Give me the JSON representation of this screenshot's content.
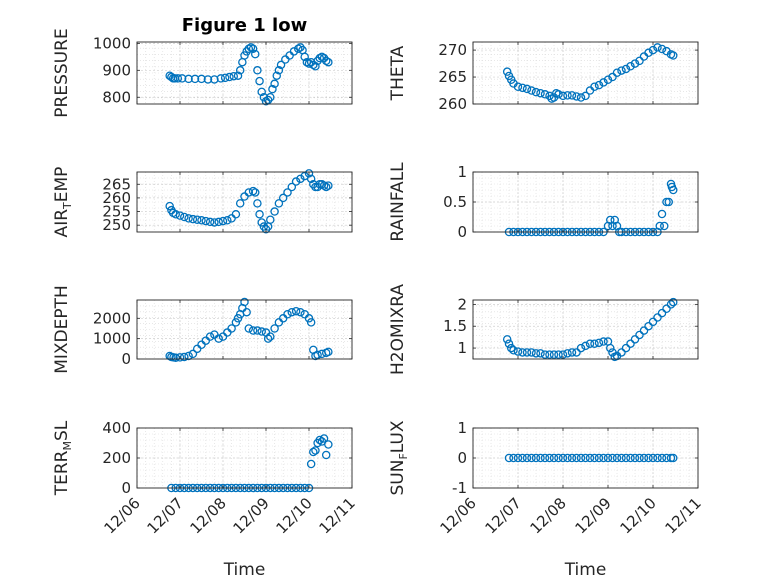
{
  "chart_data": [
    {
      "type": "scatter",
      "title": "Figure 1 low",
      "ylabel": "PRESSURE",
      "xlabel": "",
      "ylim": [
        775,
        1005
      ],
      "yticks": [
        1000,
        900,
        800
      ],
      "xlim": [
        "12/06",
        "12/11"
      ],
      "xticks": [
        "12/06",
        "12/07",
        "12/08",
        "12/09",
        "12/10",
        "12/11"
      ],
      "grid": true,
      "marker_color": "#0072BD",
      "x": [
        0.76,
        0.8,
        0.84,
        0.88,
        0.95,
        1.05,
        1.2,
        1.35,
        1.5,
        1.65,
        1.8,
        1.95,
        2.05,
        2.15,
        2.25,
        2.35,
        2.4,
        2.45,
        2.5,
        2.55,
        2.6,
        2.65,
        2.7,
        2.75,
        2.8,
        2.85,
        2.9,
        2.95,
        3.0,
        3.05,
        3.1,
        3.15,
        3.2,
        3.25,
        3.3,
        3.35,
        3.45,
        3.55,
        3.65,
        3.75,
        3.8,
        3.85,
        3.9,
        3.95,
        4.0,
        4.05,
        4.1,
        4.15,
        4.2,
        4.25,
        4.3,
        4.35,
        4.4,
        4.45
      ],
      "values": [
        880,
        875,
        870,
        870,
        870,
        870,
        868,
        868,
        868,
        866,
        866,
        870,
        872,
        875,
        878,
        880,
        900,
        930,
        955,
        970,
        980,
        985,
        980,
        960,
        900,
        860,
        820,
        800,
        785,
        790,
        800,
        830,
        850,
        880,
        900,
        920,
        940,
        955,
        970,
        980,
        985,
        975,
        950,
        930,
        925,
        930,
        920,
        915,
        935,
        945,
        950,
        945,
        935,
        930
      ]
    },
    {
      "type": "scatter",
      "title": "",
      "ylabel": "THETA",
      "xlabel": "",
      "ylim": [
        260,
        271.5
      ],
      "yticks": [
        270,
        265,
        260
      ],
      "xlim": [
        "12/06",
        "12/11"
      ],
      "xticks": [
        "12/06",
        "12/07",
        "12/08",
        "12/09",
        "12/10",
        "12/11"
      ],
      "grid": true,
      "marker_color": "#0072BD",
      "x": [
        0.76,
        0.8,
        0.85,
        0.9,
        1.0,
        1.1,
        1.2,
        1.3,
        1.4,
        1.5,
        1.6,
        1.7,
        1.75,
        1.8,
        1.85,
        1.9,
        2.0,
        2.1,
        2.2,
        2.3,
        2.4,
        2.5,
        2.6,
        2.7,
        2.8,
        2.9,
        3.0,
        3.1,
        3.2,
        3.3,
        3.4,
        3.5,
        3.6,
        3.7,
        3.8,
        3.9,
        4.0,
        4.1,
        4.2,
        4.3,
        4.4,
        4.45
      ],
      "values": [
        266,
        265.2,
        264.5,
        263.8,
        263.2,
        263,
        262.8,
        262.5,
        262.2,
        262,
        261.8,
        261.5,
        261,
        261.2,
        262,
        261.8,
        261.5,
        261.6,
        261.6,
        261.4,
        261.2,
        261.5,
        262.5,
        263.2,
        263.5,
        264,
        264.5,
        265,
        265.8,
        266.2,
        266.5,
        267,
        267.5,
        268,
        268.8,
        269.5,
        270,
        270.5,
        270.2,
        269.8,
        269.2,
        269
      ]
    },
    {
      "type": "scatter",
      "title": "",
      "ylabel": "AIR_TEMP",
      "xlabel": "",
      "ylim": [
        247.5,
        269.5
      ],
      "yticks": [
        265,
        260,
        255,
        250
      ],
      "xlim": [
        "12/06",
        "12/11"
      ],
      "xticks": [
        "12/06",
        "12/07",
        "12/08",
        "12/09",
        "12/10",
        "12/11"
      ],
      "grid": true,
      "marker_color": "#0072BD",
      "x": [
        0.76,
        0.8,
        0.84,
        0.9,
        1.0,
        1.1,
        1.2,
        1.3,
        1.4,
        1.5,
        1.6,
        1.7,
        1.8,
        1.9,
        2.0,
        2.1,
        2.2,
        2.3,
        2.4,
        2.5,
        2.6,
        2.7,
        2.75,
        2.8,
        2.85,
        2.9,
        2.95,
        3.0,
        3.05,
        3.1,
        3.2,
        3.3,
        3.4,
        3.5,
        3.6,
        3.7,
        3.8,
        3.9,
        4.0,
        4.05,
        4.1,
        4.15,
        4.2,
        4.25,
        4.3,
        4.35,
        4.4,
        4.45
      ],
      "values": [
        257,
        255.5,
        254.5,
        254,
        253.5,
        253,
        252.5,
        252.2,
        252,
        251.8,
        251.5,
        251.2,
        251,
        251.2,
        251.5,
        251.8,
        252.5,
        254,
        258,
        260.5,
        262,
        262.5,
        262,
        258,
        254,
        251,
        249.5,
        248.5,
        249.5,
        252,
        255,
        258,
        260,
        262,
        264,
        266,
        267,
        268,
        269,
        267,
        265,
        264,
        264,
        265,
        265,
        264.5,
        264,
        264.5
      ]
    },
    {
      "type": "scatter",
      "title": "",
      "ylabel": "RAINFALL",
      "xlabel": "",
      "ylim": [
        0,
        1
      ],
      "yticks": [
        1,
        0.5,
        0
      ],
      "xlim": [
        "12/06",
        "12/11"
      ],
      "xticks": [
        "12/06",
        "12/07",
        "12/08",
        "12/09",
        "12/10",
        "12/11"
      ],
      "grid": true,
      "marker_color": "#0072BD",
      "x": [
        0.8,
        0.9,
        1.0,
        1.1,
        1.2,
        1.3,
        1.4,
        1.5,
        1.6,
        1.7,
        1.8,
        1.9,
        2.0,
        2.1,
        2.2,
        2.3,
        2.4,
        2.5,
        2.6,
        2.7,
        2.8,
        2.9,
        3.0,
        3.05,
        3.1,
        3.15,
        3.2,
        3.25,
        3.3,
        3.4,
        3.5,
        3.6,
        3.7,
        3.8,
        3.9,
        4.0,
        4.1,
        4.15,
        4.2,
        4.25,
        4.3,
        4.35,
        4.4,
        4.42,
        4.45
      ],
      "values": [
        0,
        0,
        0,
        0,
        0,
        0,
        0,
        0,
        0,
        0,
        0,
        0,
        0,
        0,
        0,
        0,
        0,
        0,
        0,
        0,
        0,
        0,
        0.1,
        0.2,
        0.1,
        0.2,
        0.1,
        0,
        0,
        0,
        0,
        0,
        0,
        0,
        0,
        0,
        0,
        0.1,
        0.3,
        0.1,
        0.5,
        0.5,
        0.8,
        0.75,
        0.7
      ]
    },
    {
      "type": "scatter",
      "title": "",
      "ylabel": "MIXDEPTH",
      "xlabel": "",
      "ylim": [
        0,
        2900
      ],
      "yticks": [
        2000,
        1000,
        0
      ],
      "xlim": [
        "12/06",
        "12/11"
      ],
      "xticks": [
        "12/06",
        "12/07",
        "12/08",
        "12/09",
        "12/10",
        "12/11"
      ],
      "grid": true,
      "marker_color": "#0072BD",
      "x": [
        0.76,
        0.8,
        0.85,
        0.9,
        1.0,
        1.1,
        1.2,
        1.3,
        1.4,
        1.5,
        1.6,
        1.7,
        1.8,
        1.9,
        2.0,
        2.1,
        2.2,
        2.3,
        2.35,
        2.4,
        2.45,
        2.5,
        2.55,
        2.6,
        2.7,
        2.8,
        2.9,
        3.0,
        3.05,
        3.1,
        3.2,
        3.3,
        3.4,
        3.5,
        3.6,
        3.7,
        3.8,
        3.9,
        4.0,
        4.05,
        4.1,
        4.15,
        4.2,
        4.3,
        4.4,
        4.45
      ],
      "values": [
        150,
        100,
        80,
        60,
        80,
        100,
        150,
        250,
        500,
        700,
        900,
        1100,
        1200,
        1000,
        1100,
        1300,
        1500,
        1800,
        2000,
        2200,
        2500,
        2800,
        2300,
        1500,
        1400,
        1400,
        1350,
        1300,
        1000,
        1100,
        1500,
        1800,
        2000,
        2200,
        2300,
        2350,
        2300,
        2200,
        2000,
        1800,
        450,
        150,
        200,
        250,
        300,
        350
      ]
    },
    {
      "type": "scatter",
      "title": "",
      "ylabel": "H2OMIXRA",
      "xlabel": "",
      "ylim": [
        0.75,
        2.1
      ],
      "yticks": [
        2,
        1.5,
        1
      ],
      "xlim": [
        "12/06",
        "12/11"
      ],
      "xticks": [
        "12/06",
        "12/07",
        "12/08",
        "12/09",
        "12/10",
        "12/11"
      ],
      "grid": true,
      "marker_color": "#0072BD",
      "x": [
        0.76,
        0.8,
        0.85,
        0.9,
        1.0,
        1.1,
        1.2,
        1.3,
        1.4,
        1.5,
        1.6,
        1.7,
        1.8,
        1.9,
        2.0,
        2.1,
        2.2,
        2.3,
        2.4,
        2.5,
        2.6,
        2.7,
        2.8,
        2.9,
        3.0,
        3.05,
        3.1,
        3.15,
        3.2,
        3.3,
        3.4,
        3.5,
        3.6,
        3.7,
        3.8,
        3.9,
        4.0,
        4.1,
        4.2,
        4.3,
        4.4,
        4.45
      ],
      "values": [
        1.2,
        1.1,
        1.0,
        0.95,
        0.92,
        0.9,
        0.9,
        0.9,
        0.88,
        0.88,
        0.85,
        0.85,
        0.85,
        0.85,
        0.85,
        0.88,
        0.9,
        0.9,
        1.0,
        1.05,
        1.1,
        1.1,
        1.12,
        1.15,
        1.15,
        1.0,
        0.9,
        0.8,
        0.82,
        0.9,
        1.0,
        1.1,
        1.2,
        1.3,
        1.4,
        1.5,
        1.6,
        1.7,
        1.8,
        1.9,
        2.0,
        2.05
      ]
    },
    {
      "type": "scatter",
      "title": "",
      "ylabel": "TERR_MSL",
      "xlabel": "Time",
      "ylim": [
        0,
        400
      ],
      "yticks": [
        400,
        200,
        0
      ],
      "xlim": [
        "12/06",
        "12/11"
      ],
      "xticks": [
        "12/06",
        "12/07",
        "12/08",
        "12/09",
        "12/10",
        "12/11"
      ],
      "grid": true,
      "marker_color": "#0072BD",
      "x": [
        0.8,
        0.9,
        1.0,
        1.1,
        1.2,
        1.3,
        1.4,
        1.5,
        1.6,
        1.7,
        1.8,
        1.9,
        2.0,
        2.1,
        2.2,
        2.3,
        2.4,
        2.5,
        2.6,
        2.7,
        2.8,
        2.9,
        3.0,
        3.1,
        3.2,
        3.3,
        3.4,
        3.5,
        3.6,
        3.7,
        3.8,
        3.9,
        4.0,
        4.05,
        4.1,
        4.15,
        4.2,
        4.25,
        4.3,
        4.35,
        4.4,
        4.45
      ],
      "values": [
        0,
        0,
        0,
        0,
        0,
        0,
        0,
        0,
        0,
        0,
        0,
        0,
        0,
        0,
        0,
        0,
        0,
        0,
        0,
        0,
        0,
        0,
        0,
        0,
        0,
        0,
        0,
        0,
        0,
        0,
        0,
        0,
        0,
        160,
        240,
        250,
        300,
        320,
        310,
        330,
        220,
        290
      ]
    },
    {
      "type": "scatter",
      "title": "",
      "ylabel": "SUN_FLUX",
      "xlabel": "Time",
      "ylim": [
        -1,
        1
      ],
      "yticks": [
        1,
        0,
        -1
      ],
      "xlim": [
        "12/06",
        "12/11"
      ],
      "xticks": [
        "12/06",
        "12/07",
        "12/08",
        "12/09",
        "12/10",
        "12/11"
      ],
      "grid": true,
      "marker_color": "#0072BD",
      "x": [
        0.8,
        0.9,
        1.0,
        1.1,
        1.2,
        1.3,
        1.4,
        1.5,
        1.6,
        1.7,
        1.8,
        1.9,
        2.0,
        2.1,
        2.2,
        2.3,
        2.4,
        2.5,
        2.6,
        2.7,
        2.8,
        2.9,
        3.0,
        3.1,
        3.2,
        3.3,
        3.4,
        3.5,
        3.6,
        3.7,
        3.8,
        3.9,
        4.0,
        4.1,
        4.2,
        4.3,
        4.4,
        4.45
      ],
      "values": [
        0,
        0,
        0,
        0,
        0,
        0,
        0,
        0,
        0,
        0,
        0,
        0,
        0,
        0,
        0,
        0,
        0,
        0,
        0,
        0,
        0,
        0,
        0,
        0,
        0,
        0,
        0,
        0,
        0,
        0,
        0,
        0,
        0,
        0,
        0,
        0,
        0,
        0
      ]
    }
  ]
}
